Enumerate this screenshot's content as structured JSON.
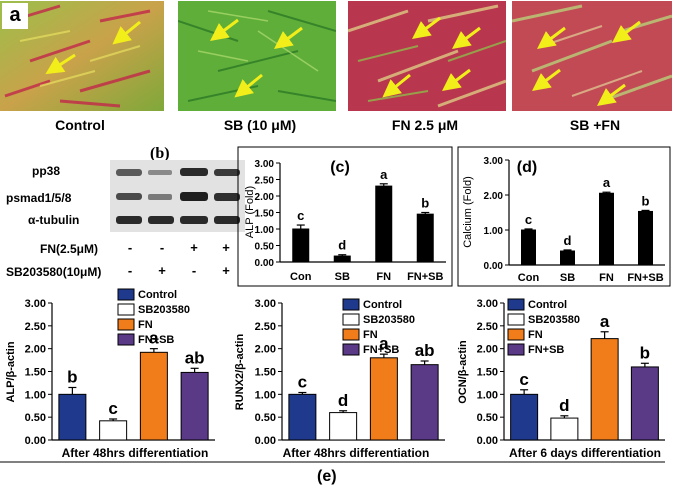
{
  "panel_a": {
    "label": "a",
    "captions": [
      "Control",
      "SB (10 μM)",
      "FN 2.5 μM",
      "SB +FN"
    ]
  },
  "panel_b": {
    "label": "(b)",
    "bands": [
      "pp38",
      "psmad1/5/8",
      "α-tubulin"
    ],
    "treatments": [
      {
        "name": "FN(2.5μM)",
        "signs": [
          "-",
          "-",
          "+",
          "+"
        ]
      },
      {
        "name": "SB203580(10μM)",
        "signs": [
          "-",
          "+",
          "-",
          "+"
        ]
      }
    ]
  },
  "panel_e_label": "(e)",
  "colors": {
    "control": "#1f3a8c",
    "sb": "#ffffff",
    "fn": "#f07d1a",
    "fnsb": "#5a3a87",
    "black": "#000000"
  },
  "chart_data": [
    {
      "id": "c",
      "type": "bar",
      "label": "(c)",
      "categories": [
        "Con",
        "SB",
        "FN",
        "FN+SB"
      ],
      "values": [
        1.0,
        0.18,
        2.3,
        1.45
      ],
      "errors": [
        0.12,
        0.04,
        0.07,
        0.05
      ],
      "letters": [
        "c",
        "d",
        "a",
        "b"
      ],
      "ylabel": "ALP (Fold)",
      "ylim": [
        0,
        3
      ],
      "yticks": [
        "0.00",
        "0.50",
        "1.00",
        "1.50",
        "2.00",
        "2.50",
        "3.00"
      ]
    },
    {
      "id": "d",
      "type": "bar",
      "label": "(d)",
      "categories": [
        "Con",
        "SB",
        "FN",
        "FN+SB"
      ],
      "values": [
        1.0,
        0.4,
        2.05,
        1.53
      ],
      "errors": [
        0.03,
        0.03,
        0.03,
        0.03
      ],
      "letters": [
        "c",
        "d",
        "a",
        "b"
      ],
      "ylabel": "Calcium  (Fold)",
      "ylim": [
        0,
        3
      ],
      "yticks": [
        "0.00",
        "1.00",
        "2.00",
        "3.00"
      ]
    },
    {
      "id": "e1",
      "type": "bar",
      "series": [
        "Control",
        "SB203580",
        "FN",
        "FN+SB"
      ],
      "values": [
        1.0,
        0.42,
        1.92,
        1.48
      ],
      "errors": [
        0.15,
        0.04,
        0.08,
        0.09
      ],
      "letters": [
        "b",
        "c",
        "a",
        "ab"
      ],
      "ylabel": "ALP/β-actin",
      "ylim": [
        0,
        3
      ],
      "yticks": [
        "0.00",
        "0.50",
        "1.00",
        "1.50",
        "2.00",
        "2.50",
        "3.00"
      ],
      "xlabel": "After 48hrs differentiation"
    },
    {
      "id": "e2",
      "type": "bar",
      "series": [
        "Control",
        "SB203580",
        "FN",
        "FN+SB"
      ],
      "values": [
        1.0,
        0.6,
        1.8,
        1.65
      ],
      "errors": [
        0.04,
        0.04,
        0.08,
        0.08
      ],
      "letters": [
        "c",
        "d",
        "a",
        "ab"
      ],
      "ylabel": "RUNX2/β-actin",
      "ylim": [
        0,
        3
      ],
      "yticks": [
        "0.00",
        "0.50",
        "1.00",
        "1.50",
        "2.00",
        "2.50",
        "3.00"
      ],
      "xlabel": "After 48hrs differentiation"
    },
    {
      "id": "e3",
      "type": "bar",
      "series": [
        "Control",
        "SB203580",
        "FN",
        "FN+SB"
      ],
      "values": [
        1.0,
        0.48,
        2.22,
        1.6
      ],
      "errors": [
        0.1,
        0.05,
        0.15,
        0.08
      ],
      "letters": [
        "c",
        "d",
        "a",
        "b"
      ],
      "ylabel": "OCN/β-actin",
      "ylim": [
        0,
        3
      ],
      "yticks": [
        "0.00",
        "0.50",
        "1.00",
        "1.50",
        "2.00",
        "2.50",
        "3.00"
      ],
      "xlabel": "After 6 days differentiation"
    }
  ]
}
